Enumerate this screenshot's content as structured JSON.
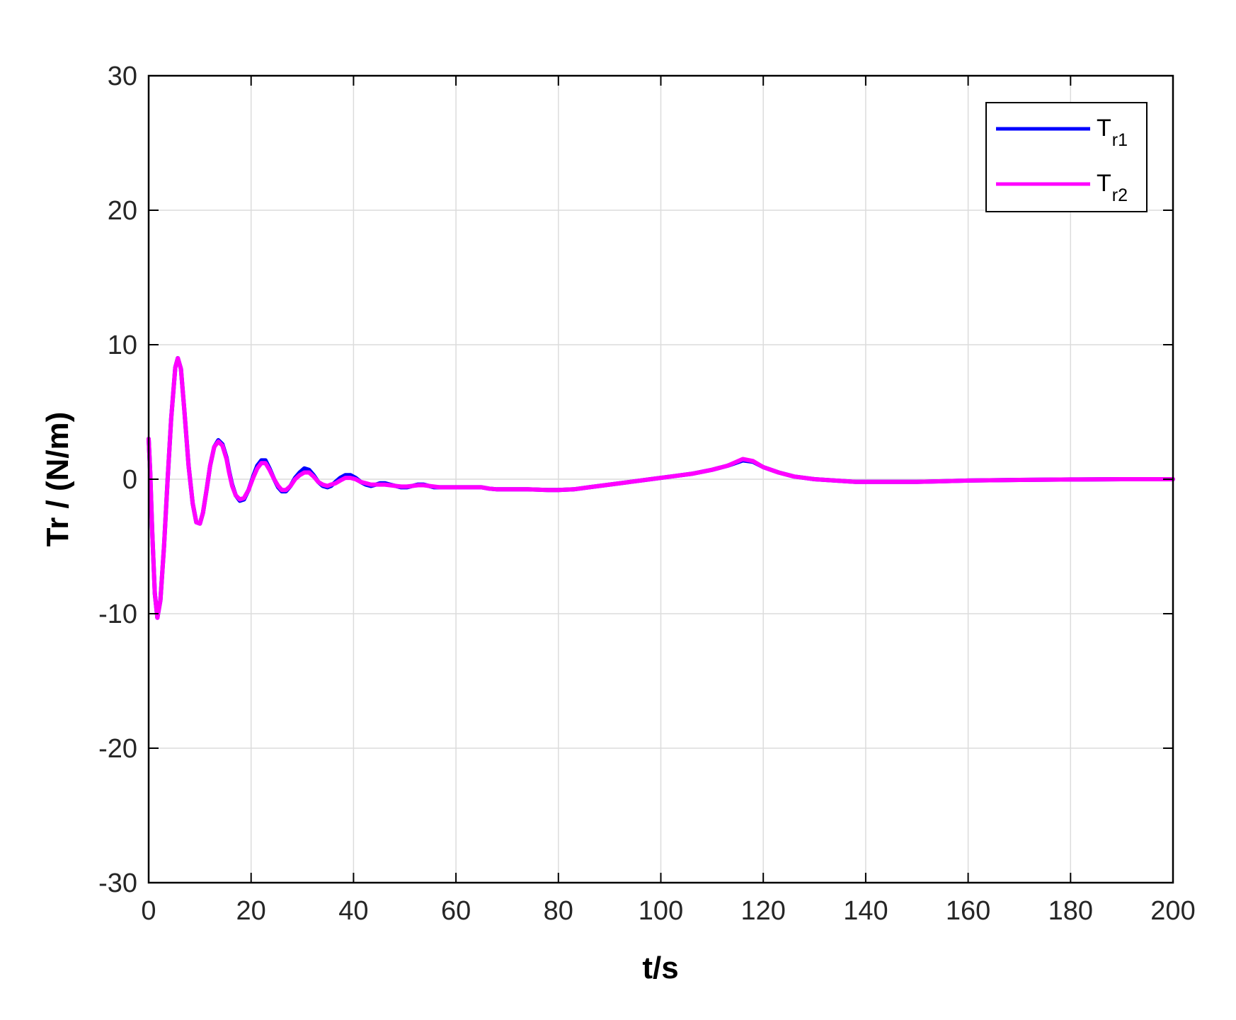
{
  "chart_data": {
    "type": "line",
    "title": "",
    "xlabel": "t/s",
    "ylabel": "Tr / (N/m)",
    "xlim": [
      0,
      200
    ],
    "ylim": [
      -30,
      30
    ],
    "x_ticks": [
      0,
      20,
      40,
      60,
      80,
      100,
      120,
      140,
      160,
      180,
      200
    ],
    "y_ticks": [
      -30,
      -20,
      -10,
      0,
      10,
      20,
      30
    ],
    "x_tick_labels": [
      "0",
      "20",
      "40",
      "60",
      "80",
      "100",
      "120",
      "140",
      "160",
      "180",
      "200"
    ],
    "y_tick_labels": [
      "-30",
      "-20",
      "-10",
      "0",
      "10",
      "20",
      "30"
    ],
    "grid": true,
    "legend_position": "top-right",
    "series": [
      {
        "name": "Tr1",
        "name_base": "T",
        "name_sub": "r1",
        "color": "#0000ff",
        "x": [
          0,
          0.3,
          0.7,
          1.2,
          1.7,
          2.3,
          3,
          3.7,
          4.4,
          5.2,
          5.7,
          6.3,
          7,
          7.8,
          8.6,
          9.3,
          10,
          10.6,
          11.3,
          12,
          12.8,
          13.6,
          14.4,
          15.2,
          15.7,
          16.3,
          17,
          17.8,
          18.6,
          19.5,
          20.4,
          21.2,
          22,
          22.8,
          23.6,
          24.5,
          25.3,
          26,
          26.8,
          27.7,
          28.6,
          29.5,
          30.4,
          31.3,
          32.2,
          33.1,
          34,
          34.9,
          35.6,
          36.5,
          37.4,
          38.4,
          39.4,
          40.4,
          41.4,
          42.4,
          43.4,
          44.4,
          45.2,
          46.1,
          47.1,
          48.2,
          49.3,
          50.4,
          51.5,
          52.6,
          53.7,
          54.7,
          55.7,
          56.8,
          57.9,
          59,
          60.2,
          61.4,
          62.6,
          63.8,
          65,
          66.5,
          68,
          70,
          72,
          74,
          76,
          78,
          80,
          83,
          86,
          90,
          94,
          98,
          102,
          106,
          110,
          113,
          116,
          118,
          120,
          123,
          126,
          130,
          134,
          138,
          142,
          146,
          150,
          155,
          160,
          170,
          180,
          190,
          200
        ],
        "values": [
          3,
          0.5,
          -4,
          -8.5,
          -10.3,
          -9,
          -5,
          0,
          4.5,
          8.3,
          9.0,
          8.2,
          5,
          1,
          -1.8,
          -3.2,
          -3.3,
          -2.5,
          -0.8,
          1.0,
          2.4,
          2.9,
          2.6,
          1.6,
          0.6,
          -0.4,
          -1.2,
          -1.6,
          -1.5,
          -0.8,
          0.2,
          1.0,
          1.4,
          1.4,
          0.8,
          0.0,
          -0.6,
          -0.9,
          -0.9,
          -0.5,
          0.1,
          0.5,
          0.8,
          0.7,
          0.3,
          -0.2,
          -0.5,
          -0.6,
          -0.5,
          -0.2,
          0.1,
          0.3,
          0.3,
          0.1,
          -0.2,
          -0.4,
          -0.5,
          -0.4,
          -0.3,
          -0.3,
          -0.4,
          -0.5,
          -0.6,
          -0.6,
          -0.5,
          -0.4,
          -0.4,
          -0.5,
          -0.6,
          -0.6,
          -0.6,
          -0.6,
          -0.6,
          -0.6,
          -0.6,
          -0.6,
          -0.6,
          -0.7,
          -0.75,
          -0.75,
          -0.75,
          -0.75,
          -0.78,
          -0.8,
          -0.8,
          -0.75,
          -0.6,
          -0.4,
          -0.2,
          0,
          0.2,
          0.4,
          0.7,
          1.0,
          1.4,
          1.3,
          0.9,
          0.5,
          0.2,
          0,
          -0.1,
          -0.2,
          -0.2,
          -0.2,
          -0.2,
          -0.15,
          -0.1,
          -0.05,
          -0.02,
          0,
          0
        ]
      },
      {
        "name": "Tr2",
        "name_base": "T",
        "name_sub": "r2",
        "color": "#ff00ff",
        "x": [
          0,
          0.3,
          0.7,
          1.2,
          1.7,
          2.3,
          3,
          3.7,
          4.4,
          5.2,
          5.7,
          6.3,
          7,
          7.8,
          8.6,
          9.3,
          10,
          10.6,
          11.3,
          12,
          12.8,
          13.6,
          14.4,
          15.2,
          15.7,
          16.3,
          17,
          17.8,
          18.6,
          19.5,
          20.4,
          21.2,
          22,
          22.8,
          23.6,
          24.5,
          25.3,
          26,
          26.8,
          27.7,
          28.6,
          29.5,
          30.4,
          31.3,
          32.2,
          33.1,
          34,
          34.9,
          35.6,
          36.5,
          37.4,
          38.4,
          39.4,
          40.4,
          41.4,
          42.4,
          43.4,
          44.4,
          45.2,
          46.1,
          47.1,
          48.2,
          49.3,
          50.4,
          51.5,
          52.6,
          53.7,
          54.7,
          55.7,
          56.8,
          57.9,
          59,
          60.2,
          61.4,
          62.6,
          63.8,
          65,
          66.5,
          68,
          70,
          72,
          74,
          76,
          78,
          80,
          83,
          86,
          90,
          94,
          98,
          102,
          106,
          110,
          113,
          116,
          118,
          120,
          123,
          126,
          130,
          134,
          138,
          142,
          146,
          150,
          155,
          160,
          170,
          180,
          190,
          200
        ],
        "values": [
          3,
          0.5,
          -4,
          -8.5,
          -10.3,
          -9,
          -5,
          0,
          4.5,
          8.3,
          9.0,
          8.2,
          5,
          1,
          -1.8,
          -3.2,
          -3.3,
          -2.5,
          -0.8,
          1.0,
          2.4,
          2.8,
          2.5,
          1.5,
          0.5,
          -0.5,
          -1.2,
          -1.5,
          -1.4,
          -0.8,
          0.1,
          0.8,
          1.2,
          1.2,
          0.7,
          0.0,
          -0.5,
          -0.8,
          -0.8,
          -0.5,
          0.0,
          0.3,
          0.5,
          0.5,
          0.2,
          -0.2,
          -0.4,
          -0.5,
          -0.4,
          -0.3,
          -0.1,
          0.1,
          0.1,
          0.0,
          -0.2,
          -0.3,
          -0.4,
          -0.4,
          -0.4,
          -0.4,
          -0.45,
          -0.5,
          -0.55,
          -0.55,
          -0.5,
          -0.45,
          -0.45,
          -0.5,
          -0.55,
          -0.6,
          -0.6,
          -0.6,
          -0.6,
          -0.6,
          -0.6,
          -0.6,
          -0.6,
          -0.7,
          -0.75,
          -0.75,
          -0.75,
          -0.75,
          -0.78,
          -0.8,
          -0.8,
          -0.75,
          -0.6,
          -0.4,
          -0.2,
          0,
          0.2,
          0.4,
          0.7,
          1.0,
          1.5,
          1.35,
          0.9,
          0.5,
          0.2,
          0,
          -0.1,
          -0.2,
          -0.2,
          -0.2,
          -0.2,
          -0.15,
          -0.1,
          -0.05,
          -0.02,
          0,
          0
        ]
      }
    ]
  }
}
